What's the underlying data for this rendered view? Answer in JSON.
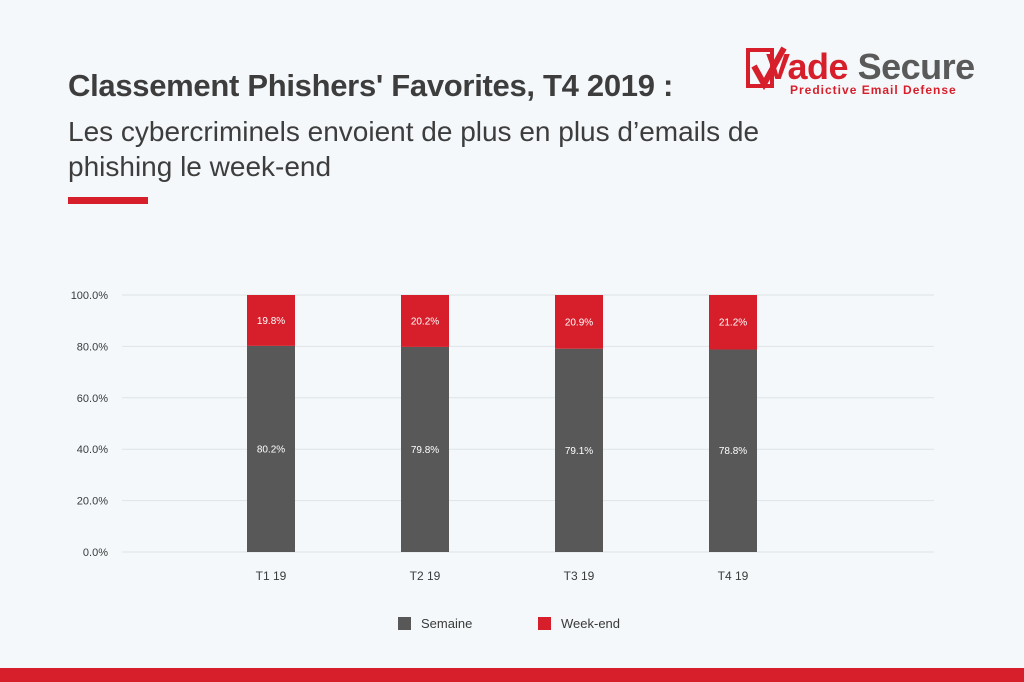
{
  "header": {
    "title": "Classement Phishers' Favorites, T4 2019 :",
    "subtitle": "Les cybercriminels envoient de plus en plus d’emails de phishing le week-end"
  },
  "logo": {
    "brand_part1": "Vade",
    "brand_part2": " Secure",
    "tagline": "Predictive Email Defense",
    "icon": "checkmark-box-icon"
  },
  "colors": {
    "semaine": "#585858",
    "weekend": "#d71f2b",
    "accent": "#d71f2b"
  },
  "legend": {
    "items": [
      {
        "label": "Semaine",
        "color": "#585858"
      },
      {
        "label": "Week-end",
        "color": "#d71f2b"
      }
    ]
  },
  "chart_data": {
    "type": "bar",
    "stacked": true,
    "categories": [
      "T1 19",
      "T2 19",
      "T3 19",
      "T4 19"
    ],
    "series": [
      {
        "name": "Semaine",
        "values": [
          80.2,
          79.8,
          79.1,
          78.8
        ],
        "labels": [
          "80.2%",
          "79.8%",
          "79.1%",
          "78.8%"
        ]
      },
      {
        "name": "Week-end",
        "values": [
          19.8,
          20.2,
          20.9,
          21.2
        ],
        "labels": [
          "19.8%",
          "20.2%",
          "20.9%",
          "21.2%"
        ]
      }
    ],
    "yticks": [
      "0.0%",
      "20.0%",
      "40.0%",
      "60.0%",
      "80.0%",
      "100.0%"
    ],
    "ylim": [
      0,
      100
    ],
    "grid": true,
    "legend_position": "bottom"
  }
}
